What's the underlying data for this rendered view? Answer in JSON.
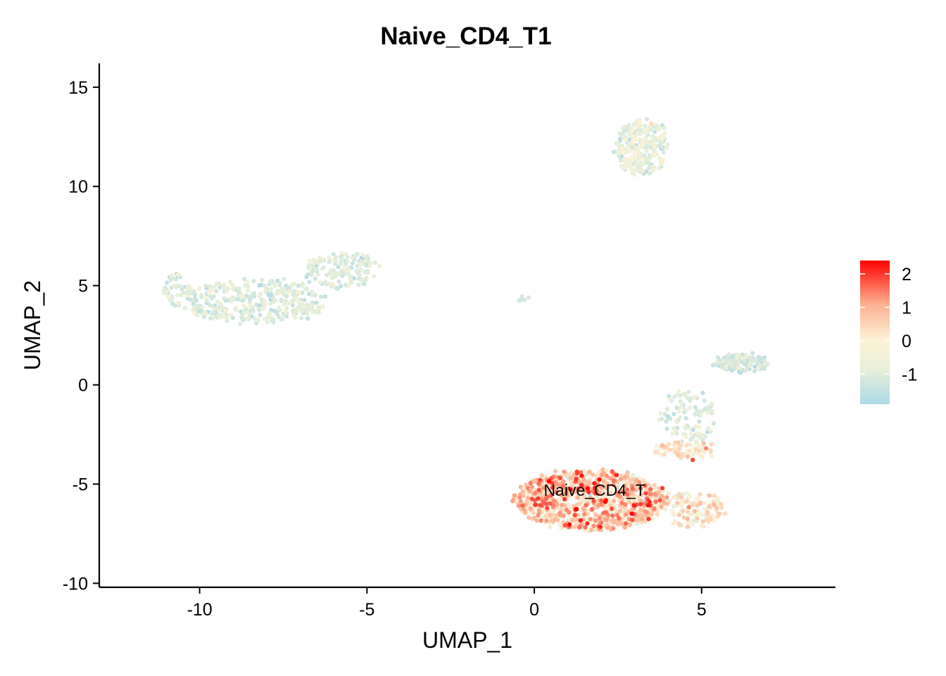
{
  "chart_data": {
    "type": "scatter",
    "title": "Naive_CD4_T1",
    "xlabel": "UMAP_1",
    "ylabel": "UMAP_2",
    "xlim": [
      -13,
      9
    ],
    "ylim": [
      -10.2,
      16.2
    ],
    "x_ticks": [
      -10,
      -5,
      0,
      5
    ],
    "y_ticks": [
      -10,
      -5,
      0,
      5,
      10,
      15
    ],
    "x_tick_labels": [
      "-10",
      "-5",
      "0",
      "5"
    ],
    "y_tick_labels": [
      "-10",
      "-5",
      "0",
      "5",
      "10",
      "15"
    ],
    "grid": false,
    "legend": {
      "position": "right",
      "type": "colorbar",
      "min": -1.9,
      "max": 2.4,
      "ticks": [
        2,
        1,
        0,
        -1
      ],
      "tick_labels": [
        "2",
        "1",
        "0",
        "-1"
      ],
      "colors": [
        "#ADD8E6",
        "#E8F0D8",
        "#FDF1D6",
        "#FCAF8E",
        "#FF0000"
      ]
    },
    "cluster_labels": [
      {
        "text": "Naive_CD4_T",
        "x": 1.8,
        "y": -5.3
      }
    ],
    "clusters": [
      {
        "cx": -8.4,
        "cy": 4.2,
        "rx": 2.2,
        "ry": 1.1,
        "n": 340,
        "mean": -1.1,
        "sd": 0.35
      },
      {
        "cx": -5.8,
        "cy": 5.8,
        "rx": 1.1,
        "ry": 0.9,
        "n": 140,
        "mean": -1.1,
        "sd": 0.35
      },
      {
        "cx": -10.6,
        "cy": 4.8,
        "rx": 0.45,
        "ry": 0.8,
        "n": 50,
        "mean": -1.0,
        "sd": 0.35
      },
      {
        "cx": 3.2,
        "cy": 12.0,
        "rx": 0.8,
        "ry": 1.4,
        "n": 260,
        "mean": -0.9,
        "sd": 0.45
      },
      {
        "cx": 6.2,
        "cy": 1.1,
        "rx": 0.8,
        "ry": 0.45,
        "n": 130,
        "mean": -1.3,
        "sd": 0.3
      },
      {
        "cx": 4.6,
        "cy": -1.6,
        "rx": 0.8,
        "ry": 1.4,
        "n": 110,
        "mean": -1.1,
        "sd": 0.4
      },
      {
        "cx": 4.5,
        "cy": -3.3,
        "rx": 0.9,
        "ry": 0.4,
        "n": 70,
        "mean": 0.1,
        "sd": 0.5
      },
      {
        "cx": 1.7,
        "cy": -5.8,
        "rx": 2.3,
        "ry": 1.5,
        "n": 1050,
        "mean": 0.4,
        "sd": 0.8
      },
      {
        "cx": 4.8,
        "cy": -6.3,
        "rx": 0.9,
        "ry": 0.9,
        "n": 120,
        "mean": 0.1,
        "sd": 0.6
      },
      {
        "cx": -0.4,
        "cy": 4.3,
        "rx": 0.12,
        "ry": 0.1,
        "n": 6,
        "mean": -1.2,
        "sd": 0.2
      }
    ]
  }
}
